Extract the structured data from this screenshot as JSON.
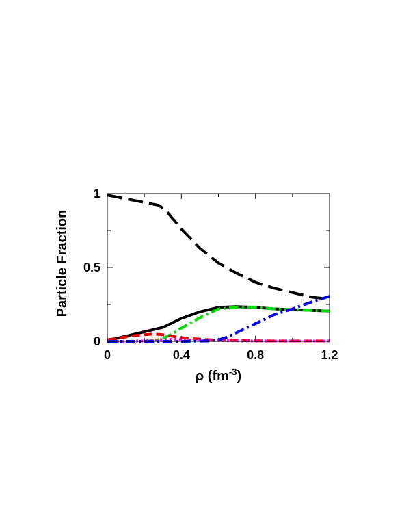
{
  "chart_data": {
    "type": "line",
    "xlabel": "ρ (fm",
    "xlabel_sup": "-3",
    "xlabel_close": ")",
    "ylabel": "Particle Fraction",
    "xlim": [
      0,
      1.2
    ],
    "ylim": [
      0,
      1
    ],
    "x_ticks": [
      0,
      0.4,
      0.8,
      1.2
    ],
    "x_tick_labels": [
      "0",
      "0.4",
      "0.8",
      "1.2"
    ],
    "y_ticks": [
      0,
      0.5,
      1
    ],
    "y_tick_labels": [
      "0",
      "0.5",
      "1"
    ],
    "grid": false,
    "legend": "none",
    "series": [
      {
        "color": "#000000",
        "style": "long-dash",
        "x": [
          0,
          0.1,
          0.2,
          0.28,
          0.32,
          0.4,
          0.5,
          0.6,
          0.7,
          0.8,
          0.9,
          1.0,
          1.1,
          1.2
        ],
        "y": [
          0.99,
          0.965,
          0.94,
          0.92,
          0.88,
          0.76,
          0.63,
          0.53,
          0.46,
          0.4,
          0.36,
          0.33,
          0.3,
          0.285
        ]
      },
      {
        "color": "#000000",
        "style": "solid",
        "x": [
          0,
          0.05,
          0.1,
          0.15,
          0.2,
          0.25,
          0.3,
          0.35,
          0.4,
          0.5,
          0.6,
          0.7,
          0.8,
          0.9,
          1.0,
          1.1,
          1.2
        ],
        "y": [
          0.01,
          0.02,
          0.035,
          0.05,
          0.065,
          0.08,
          0.095,
          0.125,
          0.155,
          0.2,
          0.23,
          0.235,
          0.23,
          0.22,
          0.215,
          0.21,
          0.205
        ]
      },
      {
        "color": "#00dd00",
        "style": "dash-dot",
        "x": [
          0.2,
          0.25,
          0.3,
          0.35,
          0.4,
          0.5,
          0.6,
          0.7,
          0.8,
          0.9,
          1.0,
          1.1,
          1.2
        ],
        "y": [
          0.0,
          0.005,
          0.02,
          0.05,
          0.09,
          0.16,
          0.22,
          0.23,
          0.23,
          0.22,
          0.215,
          0.21,
          0.205
        ]
      },
      {
        "color": "#ee0000",
        "style": "dash",
        "x": [
          0,
          0.05,
          0.1,
          0.15,
          0.2,
          0.25,
          0.3,
          0.35,
          0.4,
          0.5,
          0.6,
          0.7,
          0.8,
          0.9,
          1.0,
          1.1,
          1.2
        ],
        "y": [
          0.01,
          0.02,
          0.03,
          0.04,
          0.045,
          0.05,
          0.045,
          0.035,
          0.025,
          0.015,
          0.008,
          0.005,
          0.004,
          0.003,
          0.003,
          0.003,
          0.003
        ]
      },
      {
        "color": "#ff00ff",
        "style": "dot",
        "x": [
          0,
          0.1,
          0.2,
          0.25,
          0.3,
          0.35,
          0.4,
          0.5,
          0.6,
          0.7,
          0.8,
          0.9,
          1.0,
          1.1,
          1.2
        ],
        "y": [
          0.0,
          0.0,
          0.003,
          0.008,
          0.012,
          0.014,
          0.012,
          0.008,
          0.005,
          0.003,
          0.002,
          0.002,
          0.002,
          0.002,
          0.002
        ]
      },
      {
        "color": "#0000ee",
        "style": "dash-dot",
        "x": [
          0,
          0.2,
          0.4,
          0.55,
          0.6,
          0.65,
          0.7,
          0.8,
          0.9,
          1.0,
          1.1,
          1.2
        ],
        "y": [
          0.0,
          0.0,
          0.0,
          0.003,
          0.01,
          0.03,
          0.06,
          0.12,
          0.18,
          0.22,
          0.265,
          0.305
        ]
      }
    ]
  }
}
